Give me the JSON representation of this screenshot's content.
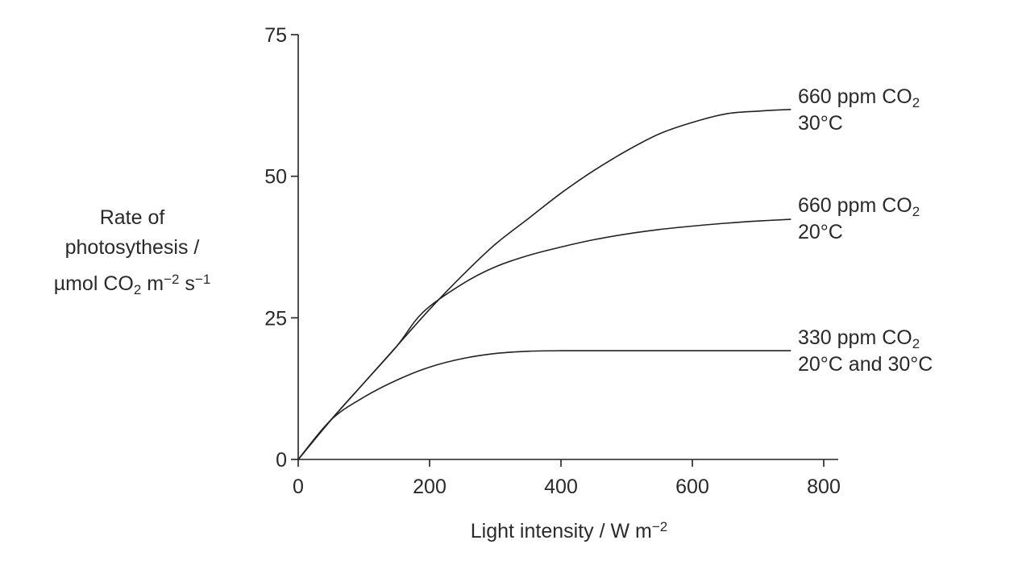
{
  "chart_data": {
    "type": "line",
    "title": "",
    "xlabel": {
      "main": "Light intensity / W m",
      "sup": "−2"
    },
    "ylabel": {
      "line1": "Rate of",
      "line2": "photosythesis /",
      "line3": [
        {
          "t": "µmol CO"
        },
        {
          "t": "2",
          "sub": true
        },
        {
          "t": " m"
        },
        {
          "t": "−2",
          "sup": true
        },
        {
          "t": " s"
        },
        {
          "t": "−1",
          "sup": true
        }
      ]
    },
    "xlim": [
      0,
      820
    ],
    "ylim": [
      0,
      75
    ],
    "xticks": [
      0,
      200,
      400,
      600,
      800
    ],
    "yticks": [
      0,
      25,
      50,
      75
    ],
    "grid": false,
    "series": [
      {
        "name_lines": [
          [
            {
              "t": "660 ppm CO"
            },
            {
              "t": "2",
              "sub": true
            }
          ],
          [
            {
              "t": "30°C"
            }
          ]
        ],
        "x": [
          0,
          50,
          100,
          150,
          200,
          250,
          300,
          350,
          400,
          450,
          500,
          550,
          600,
          650,
          700,
          750
        ],
        "y": [
          0,
          7,
          13.5,
          20,
          26.5,
          32.5,
          38,
          42.5,
          47,
          51,
          54.5,
          57.5,
          59.5,
          61,
          61.5,
          61.8
        ]
      },
      {
        "name_lines": [
          [
            {
              "t": "660 ppm CO"
            },
            {
              "t": "2",
              "sub": true
            }
          ],
          [
            {
              "t": "20°C"
            }
          ]
        ],
        "x": [
          0,
          50,
          100,
          150,
          190,
          250,
          300,
          350,
          400,
          450,
          500,
          550,
          600,
          650,
          700,
          750
        ],
        "y": [
          0,
          7,
          13.5,
          20,
          26,
          31,
          34,
          36,
          37.5,
          38.8,
          39.8,
          40.6,
          41.2,
          41.7,
          42.1,
          42.4
        ]
      },
      {
        "name_lines": [
          [
            {
              "t": "330 ppm CO"
            },
            {
              "t": "2",
              "sub": true
            }
          ],
          [
            {
              "t": "20°C and 30°C"
            }
          ]
        ],
        "x": [
          0,
          50,
          100,
          150,
          200,
          250,
          300,
          350,
          400,
          500,
          600,
          700,
          750
        ],
        "y": [
          0,
          7,
          11,
          14,
          16.3,
          17.8,
          18.7,
          19.1,
          19.2,
          19.2,
          19.2,
          19.2,
          19.2
        ]
      }
    ]
  }
}
